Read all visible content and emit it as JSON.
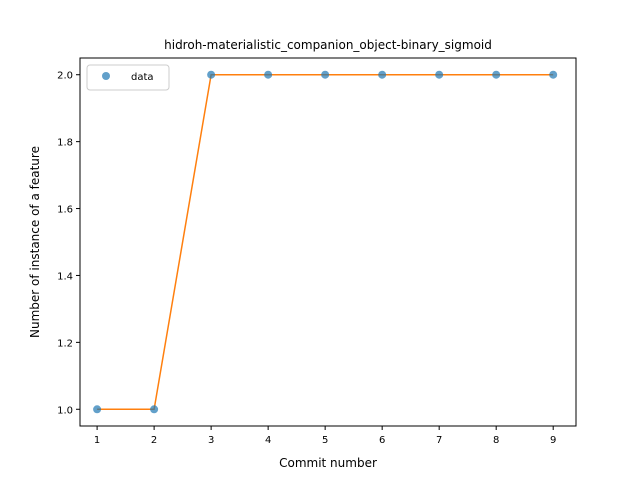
{
  "chart_data": {
    "type": "line",
    "title": "hidroh-materialistic_companion_object-binary_sigmoid",
    "xlabel": "Commit number",
    "ylabel": "Number of instance of a feature",
    "xlim": [
      0.7,
      9.4
    ],
    "ylim": [
      0.95,
      2.05
    ],
    "xticks": [
      1,
      2,
      3,
      4,
      5,
      6,
      7,
      8,
      9
    ],
    "yticks": [
      1.0,
      1.2,
      1.4,
      1.6,
      1.8,
      2.0
    ],
    "ytick_labels": [
      "1.0",
      "1.2",
      "1.4",
      "1.6",
      "1.8",
      "2.0"
    ],
    "grid": false,
    "legend": {
      "position": "top-left",
      "entries": [
        "data"
      ]
    },
    "series": [
      {
        "name": "data",
        "style": "markers",
        "color": "#1f77b4",
        "x": [
          1,
          2,
          3,
          4,
          5,
          6,
          7,
          8,
          9
        ],
        "y": [
          1,
          1,
          2,
          2,
          2,
          2,
          2,
          2,
          2
        ]
      },
      {
        "style": "line",
        "color": "#ff7f0e",
        "x": [
          1,
          2,
          3,
          4,
          5,
          6,
          7,
          8,
          9
        ],
        "y": [
          1,
          1,
          2,
          2,
          2,
          2,
          2,
          2,
          2
        ]
      }
    ]
  }
}
